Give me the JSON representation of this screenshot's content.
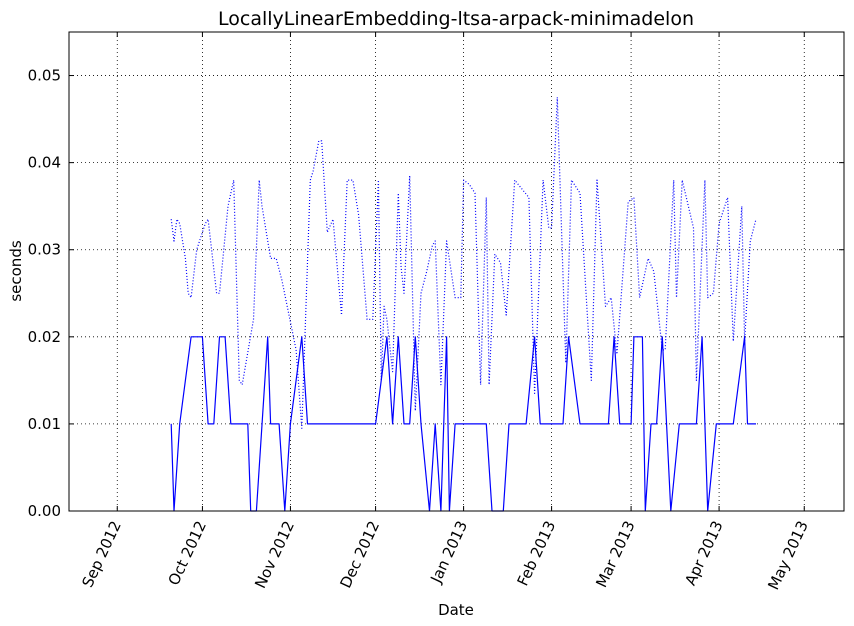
{
  "chart_data": {
    "type": "line",
    "title": "LocallyLinearEmbedding-ltsa-arpack-minimadelon",
    "xlabel": "Date",
    "ylabel": "seconds",
    "xlim": [
      "2012-08-15",
      "2013-05-15"
    ],
    "ylim": [
      0,
      0.055
    ],
    "grid": true,
    "x_ticks": [
      {
        "date": "2012-09-01",
        "label": "Sep 2012"
      },
      {
        "date": "2012-10-01",
        "label": "Oct 2012"
      },
      {
        "date": "2012-11-01",
        "label": "Nov 2012"
      },
      {
        "date": "2012-12-01",
        "label": "Dec 2012"
      },
      {
        "date": "2013-01-01",
        "label": "Jan 2013"
      },
      {
        "date": "2013-02-01",
        "label": "Feb 2013"
      },
      {
        "date": "2013-03-01",
        "label": "Mar 2013"
      },
      {
        "date": "2013-04-01",
        "label": "Apr 2013"
      },
      {
        "date": "2013-05-01",
        "label": "May 2013"
      }
    ],
    "y_ticks": [
      {
        "value": 0.0,
        "label": "0.00"
      },
      {
        "value": 0.01,
        "label": "0.01"
      },
      {
        "value": 0.02,
        "label": "0.02"
      },
      {
        "value": 0.03,
        "label": "0.03"
      },
      {
        "value": 0.04,
        "label": "0.04"
      },
      {
        "value": 0.05,
        "label": "0.05"
      }
    ],
    "series": [
      {
        "style": "solid",
        "color": "#0000ff",
        "points": [
          [
            "2012-09-20",
            0.01
          ],
          [
            "2012-09-21",
            0.0
          ],
          [
            "2012-09-23",
            0.01
          ],
          [
            "2012-09-27",
            0.02
          ],
          [
            "2012-10-01",
            0.02
          ],
          [
            "2012-10-03",
            0.01
          ],
          [
            "2012-10-05",
            0.01
          ],
          [
            "2012-10-07",
            0.02
          ],
          [
            "2012-10-09",
            0.02
          ],
          [
            "2012-10-11",
            0.01
          ],
          [
            "2012-10-17",
            0.01
          ],
          [
            "2012-10-18",
            0.0
          ],
          [
            "2012-10-20",
            0.0
          ],
          [
            "2012-10-24",
            0.02
          ],
          [
            "2012-10-25",
            0.01
          ],
          [
            "2012-10-28",
            0.01
          ],
          [
            "2012-10-30",
            0.0
          ],
          [
            "2012-11-01",
            0.01
          ],
          [
            "2012-11-05",
            0.02
          ],
          [
            "2012-11-07",
            0.01
          ],
          [
            "2012-11-09",
            0.01
          ],
          [
            "2012-12-01",
            0.01
          ],
          [
            "2012-12-05",
            0.02
          ],
          [
            "2012-12-07",
            0.01
          ],
          [
            "2012-12-09",
            0.02
          ],
          [
            "2012-12-11",
            0.01
          ],
          [
            "2012-12-13",
            0.01
          ],
          [
            "2012-12-15",
            0.02
          ],
          [
            "2012-12-17",
            0.01
          ],
          [
            "2012-12-20",
            0.0
          ],
          [
            "2012-12-22",
            0.01
          ],
          [
            "2012-12-24",
            0.0
          ],
          [
            "2012-12-26",
            0.02
          ],
          [
            "2012-12-27",
            0.0
          ],
          [
            "2012-12-29",
            0.01
          ],
          [
            "2013-01-09",
            0.01
          ],
          [
            "2013-01-11",
            0.0
          ],
          [
            "2013-01-15",
            0.0
          ],
          [
            "2013-01-17",
            0.01
          ],
          [
            "2013-01-23",
            0.01
          ],
          [
            "2013-01-26",
            0.02
          ],
          [
            "2013-01-28",
            0.01
          ],
          [
            "2013-02-05",
            0.01
          ],
          [
            "2013-02-07",
            0.02
          ],
          [
            "2013-02-11",
            0.01
          ],
          [
            "2013-02-21",
            0.01
          ],
          [
            "2013-02-23",
            0.02
          ],
          [
            "2013-02-25",
            0.01
          ],
          [
            "2013-03-01",
            0.01
          ],
          [
            "2013-03-02",
            0.02
          ],
          [
            "2013-03-05",
            0.02
          ],
          [
            "2013-03-06",
            0.0
          ],
          [
            "2013-03-08",
            0.01
          ],
          [
            "2013-03-10",
            0.01
          ],
          [
            "2013-03-12",
            0.02
          ],
          [
            "2013-03-15",
            0.0
          ],
          [
            "2013-03-18",
            0.01
          ],
          [
            "2013-03-24",
            0.01
          ],
          [
            "2013-03-26",
            0.02
          ],
          [
            "2013-03-28",
            0.0
          ],
          [
            "2013-03-31",
            0.01
          ],
          [
            "2013-04-06",
            0.01
          ],
          [
            "2013-04-10",
            0.02
          ],
          [
            "2013-04-11",
            0.01
          ],
          [
            "2013-04-14",
            0.01
          ]
        ]
      },
      {
        "style": "dotted",
        "color": "#0000ff",
        "points": [
          [
            "2012-09-20",
            0.0335
          ],
          [
            "2012-09-21",
            0.031
          ],
          [
            "2012-09-22",
            0.0335
          ],
          [
            "2012-09-23",
            0.033
          ],
          [
            "2012-09-25",
            0.029
          ],
          [
            "2012-09-26",
            0.025
          ],
          [
            "2012-09-27",
            0.0245
          ],
          [
            "2012-09-29",
            0.03
          ],
          [
            "2012-10-01",
            0.032
          ],
          [
            "2012-10-02",
            0.033
          ],
          [
            "2012-10-03",
            0.0335
          ],
          [
            "2012-10-06",
            0.025
          ],
          [
            "2012-10-07",
            0.025
          ],
          [
            "2012-10-10",
            0.035
          ],
          [
            "2012-10-12",
            0.038
          ],
          [
            "2012-10-14",
            0.015
          ],
          [
            "2012-10-15",
            0.0145
          ],
          [
            "2012-10-19",
            0.022
          ],
          [
            "2012-10-21",
            0.038
          ],
          [
            "2012-10-22",
            0.035
          ],
          [
            "2012-10-25",
            0.029
          ],
          [
            "2012-10-27",
            0.029
          ],
          [
            "2012-10-29",
            0.0265
          ],
          [
            "2012-11-03",
            0.0185
          ],
          [
            "2012-11-05",
            0.0095
          ],
          [
            "2012-11-08",
            0.038
          ],
          [
            "2012-11-09",
            0.039
          ],
          [
            "2012-11-11",
            0.0425
          ],
          [
            "2012-11-12",
            0.0425
          ],
          [
            "2012-11-14",
            0.032
          ],
          [
            "2012-11-16",
            0.0335
          ],
          [
            "2012-11-19",
            0.0225
          ],
          [
            "2012-11-21",
            0.038
          ],
          [
            "2012-11-23",
            0.038
          ],
          [
            "2012-11-25",
            0.034
          ],
          [
            "2012-11-28",
            0.022
          ],
          [
            "2012-11-30",
            0.022
          ],
          [
            "2012-12-02",
            0.038
          ],
          [
            "2012-12-03",
            0.015
          ],
          [
            "2012-12-04",
            0.0235
          ],
          [
            "2012-12-05",
            0.022
          ],
          [
            "2012-12-07",
            0.016
          ],
          [
            "2012-12-09",
            0.0365
          ],
          [
            "2012-12-10",
            0.028
          ],
          [
            "2012-12-11",
            0.025
          ],
          [
            "2012-12-13",
            0.0385
          ],
          [
            "2012-12-15",
            0.0115
          ],
          [
            "2012-12-17",
            0.025
          ],
          [
            "2012-12-19",
            0.0275
          ],
          [
            "2012-12-21",
            0.0305
          ],
          [
            "2012-12-22",
            0.031
          ],
          [
            "2012-12-24",
            0.0145
          ],
          [
            "2012-12-26",
            0.031
          ],
          [
            "2012-12-29",
            0.0245
          ],
          [
            "2012-12-31",
            0.0245
          ],
          [
            "2013-01-01",
            0.038
          ],
          [
            "2013-01-03",
            0.0375
          ],
          [
            "2013-01-05",
            0.0365
          ],
          [
            "2013-01-07",
            0.0145
          ],
          [
            "2013-01-09",
            0.036
          ],
          [
            "2013-01-10",
            0.0145
          ],
          [
            "2013-01-12",
            0.0295
          ],
          [
            "2013-01-14",
            0.0285
          ],
          [
            "2013-01-16",
            0.0225
          ],
          [
            "2013-01-19",
            0.038
          ],
          [
            "2013-01-24",
            0.036
          ],
          [
            "2013-01-26",
            0.0135
          ],
          [
            "2013-01-29",
            0.038
          ],
          [
            "2013-01-31",
            0.0325
          ],
          [
            "2013-02-01",
            0.0325
          ],
          [
            "2013-02-03",
            0.0475
          ],
          [
            "2013-02-06",
            0.017
          ],
          [
            "2013-02-08",
            0.038
          ],
          [
            "2013-02-11",
            0.0365
          ],
          [
            "2013-02-15",
            0.015
          ],
          [
            "2013-02-17",
            0.038
          ],
          [
            "2013-02-20",
            0.0235
          ],
          [
            "2013-02-22",
            0.0245
          ],
          [
            "2013-02-24",
            0.018
          ],
          [
            "2013-02-28",
            0.0355
          ],
          [
            "2013-03-02",
            0.036
          ],
          [
            "2013-03-04",
            0.0245
          ],
          [
            "2013-03-07",
            0.029
          ],
          [
            "2013-03-09",
            0.0275
          ],
          [
            "2013-03-12",
            0.0185
          ],
          [
            "2013-03-13",
            0.0185
          ],
          [
            "2013-03-16",
            0.038
          ],
          [
            "2013-03-17",
            0.0245
          ],
          [
            "2013-03-19",
            0.038
          ],
          [
            "2013-03-23",
            0.0325
          ],
          [
            "2013-03-24",
            0.015
          ],
          [
            "2013-03-27",
            0.038
          ],
          [
            "2013-03-28",
            0.0245
          ],
          [
            "2013-03-30",
            0.025
          ],
          [
            "2013-04-01",
            0.033
          ],
          [
            "2013-04-04",
            0.036
          ],
          [
            "2013-04-06",
            0.0195
          ],
          [
            "2013-04-09",
            0.035
          ],
          [
            "2013-04-10",
            0.0195
          ],
          [
            "2013-04-12",
            0.031
          ],
          [
            "2013-04-14",
            0.0335
          ]
        ]
      }
    ]
  }
}
